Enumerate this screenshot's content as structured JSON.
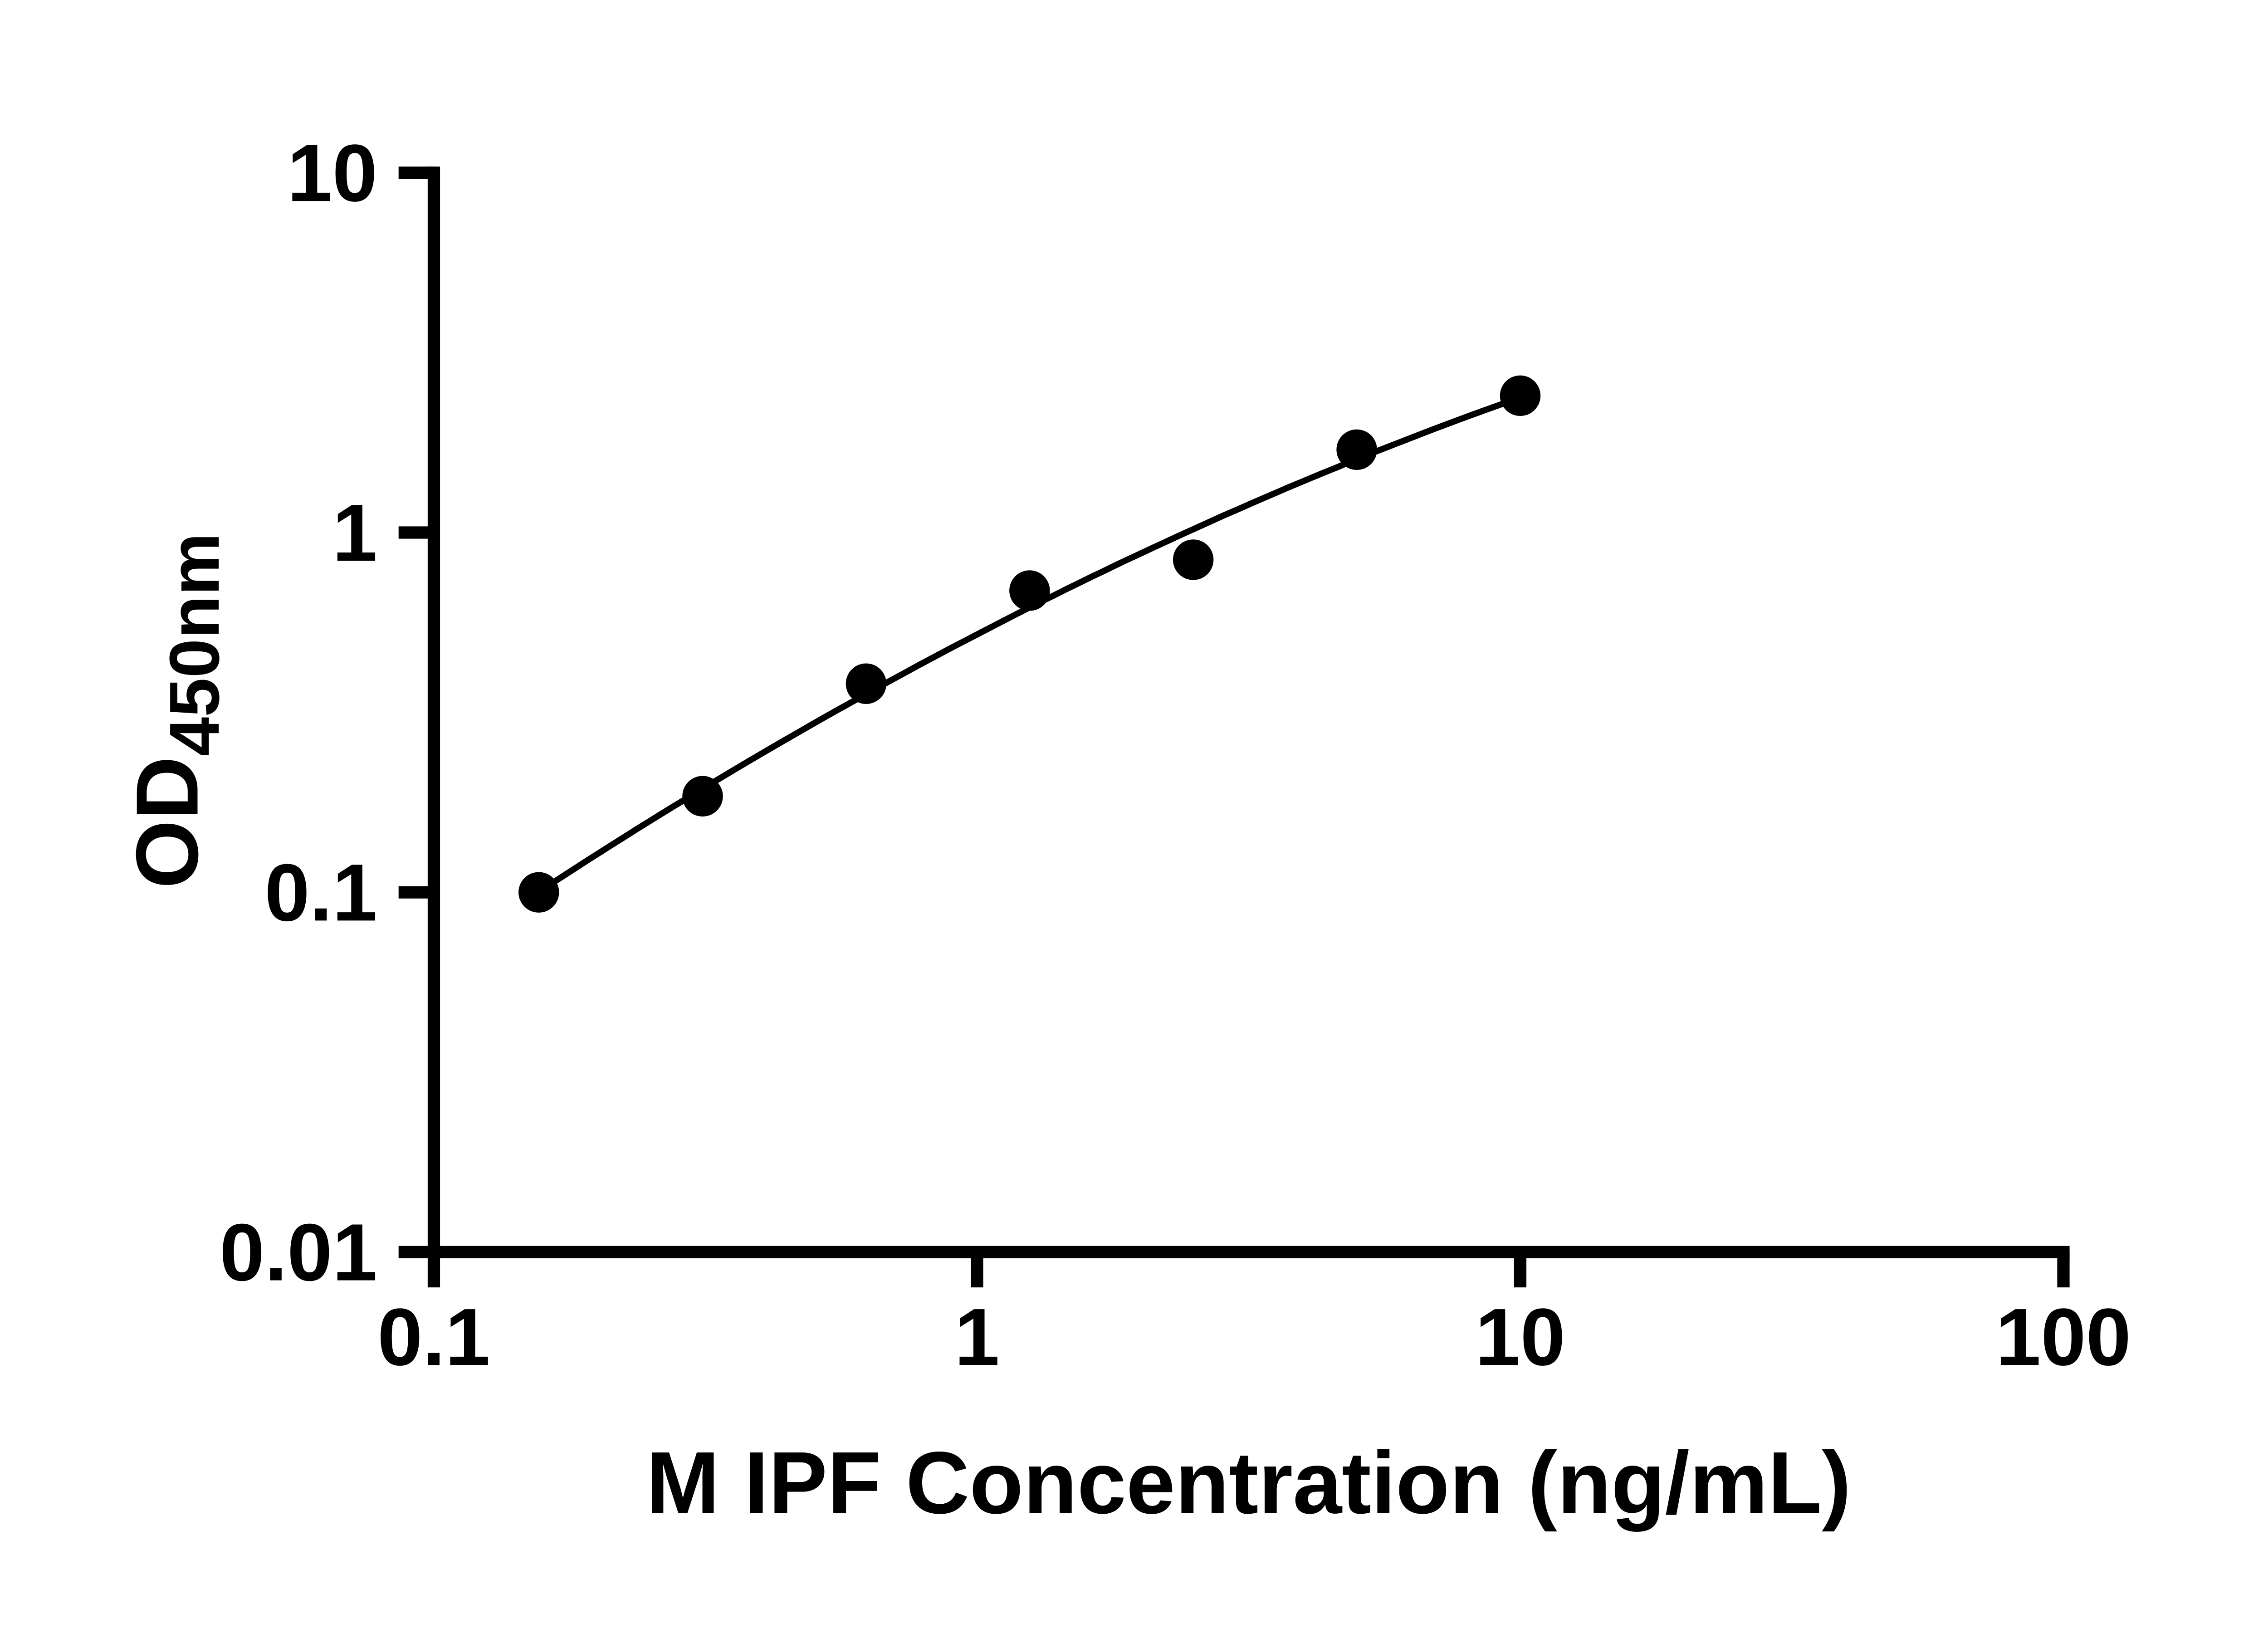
{
  "chart_data": {
    "type": "scatter",
    "title": "",
    "xlabel": "M IPF Concentration (ng/mL)",
    "ylabel_main": "OD",
    "ylabel_sub": "450nm",
    "x_scale": "log10",
    "y_scale": "log10",
    "xlim": [
      0.1,
      100
    ],
    "ylim": [
      0.01,
      10
    ],
    "x_ticks": [
      0.1,
      1,
      10,
      100
    ],
    "x_tick_labels": [
      "0.1",
      "1",
      "10",
      "100"
    ],
    "y_ticks": [
      0.01,
      0.1,
      1,
      10
    ],
    "y_tick_labels": [
      "0.01",
      "0.1",
      "1",
      "10"
    ],
    "grid": false,
    "legend": false,
    "marker": "filled-circle",
    "marker_color": "#000000",
    "line_color": "#000000",
    "background": "#ffffff",
    "series": [
      {
        "x": [
          0.156,
          0.3125,
          0.625,
          1.25,
          2.5,
          5,
          10
        ],
        "y": [
          0.1,
          0.185,
          0.38,
          0.69,
          0.84,
          1.7,
          2.4
        ],
        "fit": "smooth curve through points (log-log quadratic)"
      }
    ]
  }
}
